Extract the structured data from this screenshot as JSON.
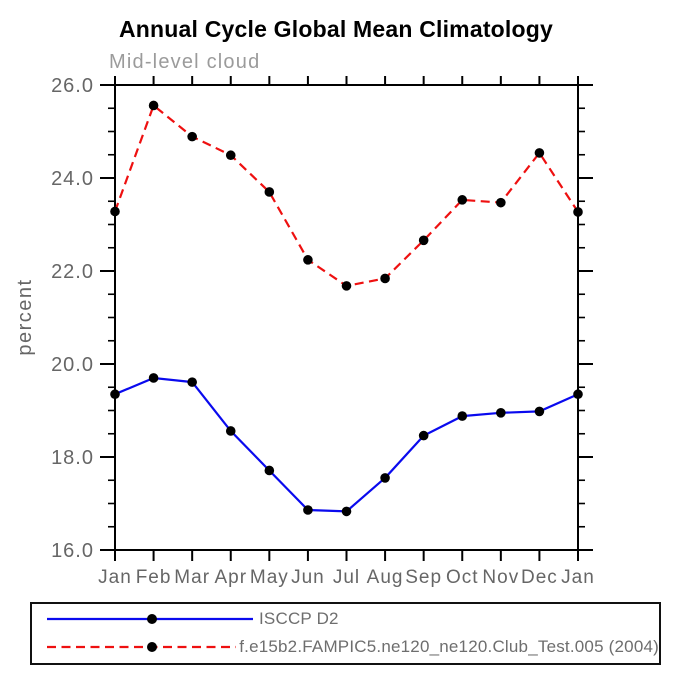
{
  "title": "Annual Cycle Global Mean Climatology",
  "subtitle": "Mid-level cloud",
  "chart_data": {
    "type": "line",
    "categories": [
      "Jan",
      "Feb",
      "Mar",
      "Apr",
      "May",
      "Jun",
      "Jul",
      "Aug",
      "Sep",
      "Oct",
      "Nov",
      "Dec",
      "Jan"
    ],
    "series": [
      {
        "name": "ISCCP D2",
        "color": "#0a0aee",
        "line_style": "solid",
        "marker": "filled-circle",
        "marker_color": "#000000",
        "values": [
          19.35,
          19.7,
          19.61,
          18.56,
          17.71,
          16.86,
          16.83,
          17.55,
          18.46,
          18.88,
          18.95,
          18.98,
          19.35
        ]
      },
      {
        "name": "f.e15b2.FAMPIC5.ne120_ne120.Club_Test.005 (2004)",
        "color": "#ee1010",
        "line_style": "dashed",
        "marker": "filled-circle",
        "marker_color": "#000000",
        "values": [
          23.28,
          25.56,
          24.89,
          24.49,
          23.7,
          22.24,
          21.68,
          21.84,
          22.66,
          23.53,
          23.47,
          24.54,
          23.27
        ]
      }
    ],
    "xlabel": "",
    "ylabel": "percent",
    "ylim": [
      16.0,
      26.0
    ],
    "ytick_major_interval": 2.0,
    "ytick_minor_interval": 0.5,
    "ytick_labels": [
      "16.0",
      "18.0",
      "20.0",
      "22.0",
      "24.0",
      "26.0"
    ],
    "grid": false,
    "legend_position": "bottom-left",
    "legend_border": true
  },
  "colors": {
    "background": "#ffffff",
    "axis": "#000000",
    "tick_label": "#666666",
    "subtitle": "#9b9b9b",
    "legend_text": "#6e6e6e",
    "series_blue": "#0a0aee",
    "series_red": "#ee1010",
    "marker": "#000000"
  }
}
